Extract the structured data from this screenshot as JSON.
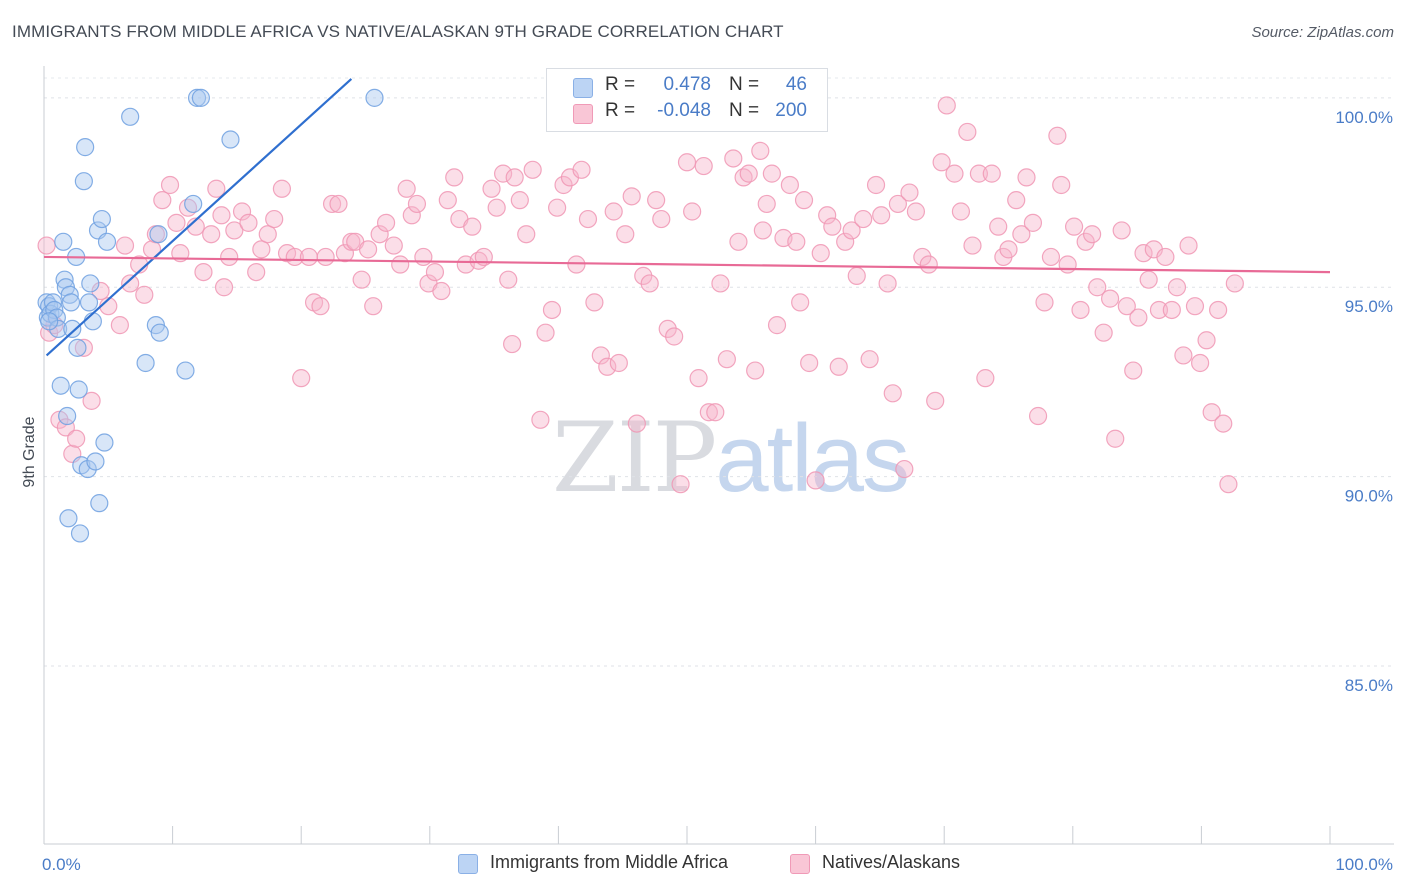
{
  "header": {
    "title": "IMMIGRANTS FROM MIDDLE AFRICA VS NATIVE/ALASKAN 9TH GRADE CORRELATION CHART",
    "source": "Source: ZipAtlas.com"
  },
  "watermark": {
    "zip": "ZIP",
    "atlas": "atlas"
  },
  "legend": {
    "rows": [
      {
        "r_label": "R =",
        "r_value": "0.478",
        "n_label": "N =",
        "n_value": "46",
        "color": "#a9c7f0"
      },
      {
        "r_label": "R =",
        "r_value": "-0.048",
        "n_label": "N =",
        "n_value": "200",
        "color": "#f7b6cb"
      }
    ]
  },
  "bottom_legend": {
    "items": [
      {
        "label": "Immigrants from Middle Africa",
        "color": "#a9c7f0"
      },
      {
        "label": "Natives/Alaskans",
        "color": "#f7b6cb"
      }
    ]
  },
  "chart_data": {
    "type": "scatter",
    "title": "IMMIGRANTS FROM MIDDLE AFRICA VS NATIVE/ALASKAN 9TH GRADE CORRELATION CHART",
    "xlabel": "",
    "ylabel": "9th Grade",
    "xlim": [
      0,
      100
    ],
    "ylim": [
      80.3,
      101.0
    ],
    "x_tick_labels": [
      "0.0%",
      "100.0%"
    ],
    "y_ticks": [
      {
        "value": 100,
        "label": "100.0%"
      },
      {
        "value": 95,
        "label": "95.0%"
      },
      {
        "value": 90,
        "label": "90.0%"
      },
      {
        "value": 85,
        "label": "85.0%"
      }
    ],
    "grid": true,
    "series": [
      {
        "name": "Immigrants from Middle Africa",
        "color": "#6fa0e0",
        "fill": "#a9c7f0",
        "trend": {
          "x": [
            0.2,
            23.9
          ],
          "y": [
            93.2,
            100.5
          ]
        },
        "points": [
          [
            0.2,
            94.6
          ],
          [
            0.3,
            94.2
          ],
          [
            0.4,
            94.5
          ],
          [
            0.5,
            94.3
          ],
          [
            0.7,
            94.6
          ],
          [
            0.8,
            94.4
          ],
          [
            1.0,
            94.2
          ],
          [
            1.1,
            93.9
          ],
          [
            1.3,
            92.4
          ],
          [
            1.5,
            96.2
          ],
          [
            1.6,
            95.2
          ],
          [
            1.7,
            95.0
          ],
          [
            1.8,
            91.6
          ],
          [
            1.9,
            88.9
          ],
          [
            2.0,
            94.8
          ],
          [
            2.1,
            94.6
          ],
          [
            2.2,
            93.9
          ],
          [
            2.5,
            95.8
          ],
          [
            2.6,
            93.4
          ],
          [
            2.7,
            92.3
          ],
          [
            2.8,
            88.5
          ],
          [
            2.9,
            90.3
          ],
          [
            3.1,
            97.8
          ],
          [
            3.2,
            98.7
          ],
          [
            3.4,
            90.2
          ],
          [
            3.5,
            94.6
          ],
          [
            3.6,
            95.1
          ],
          [
            3.8,
            94.1
          ],
          [
            4.0,
            90.4
          ],
          [
            4.2,
            96.5
          ],
          [
            4.3,
            89.3
          ],
          [
            4.5,
            96.8
          ],
          [
            4.7,
            90.9
          ],
          [
            4.9,
            96.2
          ],
          [
            6.7,
            99.5
          ],
          [
            7.9,
            93.0
          ],
          [
            8.7,
            94.0
          ],
          [
            8.9,
            96.4
          ],
          [
            9.0,
            93.8
          ],
          [
            11.0,
            92.8
          ],
          [
            11.6,
            97.2
          ],
          [
            11.9,
            100.0
          ],
          [
            12.2,
            100.0
          ],
          [
            14.5,
            98.9
          ],
          [
            25.7,
            100.0
          ],
          [
            0.4,
            94.1
          ]
        ]
      },
      {
        "name": "Natives/Alaskans",
        "color": "#f096b4",
        "fill": "#f7b6cb",
        "trend": {
          "x": [
            0.0,
            100.0
          ],
          "y": [
            95.8,
            95.4
          ]
        },
        "points": [
          [
            0.2,
            96.1
          ],
          [
            0.4,
            93.8
          ],
          [
            0.8,
            94.0
          ],
          [
            1.2,
            91.5
          ],
          [
            1.7,
            91.3
          ],
          [
            2.2,
            90.6
          ],
          [
            2.5,
            91.0
          ],
          [
            3.1,
            93.4
          ],
          [
            3.7,
            92.0
          ],
          [
            4.4,
            94.9
          ],
          [
            5.0,
            94.5
          ],
          [
            5.9,
            94.0
          ],
          [
            6.3,
            96.1
          ],
          [
            6.7,
            95.1
          ],
          [
            7.4,
            95.6
          ],
          [
            7.8,
            94.8
          ],
          [
            8.4,
            96.0
          ],
          [
            8.7,
            96.4
          ],
          [
            9.2,
            97.3
          ],
          [
            9.8,
            97.7
          ],
          [
            10.3,
            96.7
          ],
          [
            10.6,
            95.9
          ],
          [
            11.2,
            97.1
          ],
          [
            11.8,
            96.6
          ],
          [
            12.4,
            95.4
          ],
          [
            13.0,
            96.4
          ],
          [
            13.4,
            97.6
          ],
          [
            13.8,
            96.9
          ],
          [
            14.4,
            95.8
          ],
          [
            14.8,
            96.5
          ],
          [
            15.4,
            97.0
          ],
          [
            15.9,
            96.7
          ],
          [
            16.5,
            95.4
          ],
          [
            16.9,
            96.0
          ],
          [
            17.4,
            96.4
          ],
          [
            17.9,
            96.8
          ],
          [
            18.5,
            97.6
          ],
          [
            18.9,
            95.9
          ],
          [
            19.5,
            95.8
          ],
          [
            20.0,
            92.6
          ],
          [
            20.6,
            95.8
          ],
          [
            21.0,
            94.6
          ],
          [
            21.5,
            94.5
          ],
          [
            21.9,
            95.8
          ],
          [
            22.4,
            97.2
          ],
          [
            22.9,
            97.2
          ],
          [
            23.4,
            95.9
          ],
          [
            23.9,
            96.2
          ],
          [
            24.2,
            96.2
          ],
          [
            24.7,
            95.2
          ],
          [
            25.2,
            96.0
          ],
          [
            25.6,
            94.5
          ],
          [
            26.1,
            96.4
          ],
          [
            26.6,
            96.7
          ],
          [
            27.2,
            96.1
          ],
          [
            27.7,
            95.6
          ],
          [
            28.2,
            97.6
          ],
          [
            28.6,
            96.9
          ],
          [
            29.0,
            97.2
          ],
          [
            29.5,
            95.8
          ],
          [
            29.9,
            95.1
          ],
          [
            30.4,
            95.4
          ],
          [
            30.9,
            94.9
          ],
          [
            31.4,
            97.3
          ],
          [
            31.9,
            97.9
          ],
          [
            32.3,
            96.8
          ],
          [
            32.8,
            95.6
          ],
          [
            33.3,
            96.6
          ],
          [
            33.8,
            95.7
          ],
          [
            34.2,
            95.8
          ],
          [
            34.8,
            97.6
          ],
          [
            35.2,
            97.1
          ],
          [
            35.7,
            98.0
          ],
          [
            36.1,
            95.2
          ],
          [
            36.6,
            97.9
          ],
          [
            37.0,
            97.3
          ],
          [
            37.5,
            96.4
          ],
          [
            38.0,
            98.1
          ],
          [
            38.6,
            91.5
          ],
          [
            39.0,
            93.8
          ],
          [
            39.5,
            94.4
          ],
          [
            39.9,
            97.1
          ],
          [
            40.4,
            97.7
          ],
          [
            40.9,
            97.9
          ],
          [
            41.4,
            95.6
          ],
          [
            41.8,
            98.1
          ],
          [
            42.3,
            96.8
          ],
          [
            42.8,
            94.6
          ],
          [
            43.3,
            93.2
          ],
          [
            43.8,
            92.9
          ],
          [
            44.3,
            97.0
          ],
          [
            44.7,
            93.0
          ],
          [
            45.2,
            96.4
          ],
          [
            45.7,
            97.4
          ],
          [
            46.1,
            91.4
          ],
          [
            46.6,
            95.3
          ],
          [
            47.1,
            95.1
          ],
          [
            47.6,
            97.3
          ],
          [
            48.0,
            96.8
          ],
          [
            48.5,
            93.9
          ],
          [
            49.0,
            93.7
          ],
          [
            49.5,
            89.8
          ],
          [
            50.0,
            98.3
          ],
          [
            50.4,
            97.0
          ],
          [
            50.9,
            92.6
          ],
          [
            51.3,
            98.2
          ],
          [
            51.7,
            91.7
          ],
          [
            52.2,
            91.7
          ],
          [
            52.6,
            95.1
          ],
          [
            53.1,
            93.1
          ],
          [
            53.6,
            98.4
          ],
          [
            54.0,
            96.2
          ],
          [
            54.4,
            97.9
          ],
          [
            54.8,
            98.0
          ],
          [
            55.3,
            92.8
          ],
          [
            55.7,
            98.6
          ],
          [
            56.2,
            97.2
          ],
          [
            56.6,
            98.0
          ],
          [
            57.0,
            94.0
          ],
          [
            57.5,
            96.3
          ],
          [
            58.0,
            97.7
          ],
          [
            58.5,
            96.2
          ],
          [
            58.8,
            94.6
          ],
          [
            59.1,
            97.3
          ],
          [
            59.5,
            93.0
          ],
          [
            60.0,
            89.9
          ],
          [
            60.4,
            95.9
          ],
          [
            60.9,
            96.9
          ],
          [
            61.3,
            96.6
          ],
          [
            61.8,
            92.9
          ],
          [
            62.3,
            96.2
          ],
          [
            62.8,
            96.5
          ],
          [
            63.2,
            95.3
          ],
          [
            63.7,
            96.8
          ],
          [
            64.2,
            93.1
          ],
          [
            64.7,
            97.7
          ],
          [
            65.1,
            96.9
          ],
          [
            65.6,
            95.1
          ],
          [
            66.0,
            92.2
          ],
          [
            66.4,
            97.2
          ],
          [
            66.9,
            90.2
          ],
          [
            67.3,
            97.5
          ],
          [
            67.8,
            97.0
          ],
          [
            68.3,
            95.8
          ],
          [
            68.8,
            95.6
          ],
          [
            69.3,
            92.0
          ],
          [
            69.8,
            98.3
          ],
          [
            70.2,
            99.8
          ],
          [
            70.8,
            98.0
          ],
          [
            71.3,
            97.0
          ],
          [
            71.8,
            99.1
          ],
          [
            72.2,
            96.1
          ],
          [
            72.7,
            98.0
          ],
          [
            73.2,
            92.6
          ],
          [
            73.7,
            98.0
          ],
          [
            74.2,
            96.6
          ],
          [
            74.6,
            95.8
          ],
          [
            75.0,
            96.0
          ],
          [
            75.6,
            97.3
          ],
          [
            76.0,
            96.4
          ],
          [
            76.4,
            97.9
          ],
          [
            76.9,
            96.7
          ],
          [
            77.3,
            91.6
          ],
          [
            77.8,
            94.6
          ],
          [
            78.3,
            95.8
          ],
          [
            78.8,
            99.0
          ],
          [
            79.1,
            97.7
          ],
          [
            79.6,
            95.6
          ],
          [
            80.1,
            96.6
          ],
          [
            80.6,
            94.4
          ],
          [
            81.0,
            96.2
          ],
          [
            81.5,
            96.4
          ],
          [
            81.9,
            95.0
          ],
          [
            82.4,
            93.8
          ],
          [
            82.9,
            94.7
          ],
          [
            83.3,
            91.0
          ],
          [
            83.8,
            96.5
          ],
          [
            84.2,
            94.5
          ],
          [
            84.7,
            92.8
          ],
          [
            85.1,
            94.2
          ],
          [
            85.5,
            95.9
          ],
          [
            85.9,
            95.2
          ],
          [
            86.3,
            96.0
          ],
          [
            86.7,
            94.4
          ],
          [
            87.2,
            95.8
          ],
          [
            87.7,
            94.4
          ],
          [
            88.1,
            95.0
          ],
          [
            88.6,
            93.2
          ],
          [
            89.0,
            96.1
          ],
          [
            89.5,
            94.5
          ],
          [
            89.9,
            93.0
          ],
          [
            90.4,
            93.6
          ],
          [
            90.8,
            91.7
          ],
          [
            91.3,
            94.4
          ],
          [
            91.7,
            91.4
          ],
          [
            92.1,
            89.8
          ],
          [
            92.6,
            95.1
          ],
          [
            55.9,
            96.5
          ],
          [
            36.4,
            93.5
          ],
          [
            14.0,
            95.0
          ]
        ]
      }
    ]
  }
}
